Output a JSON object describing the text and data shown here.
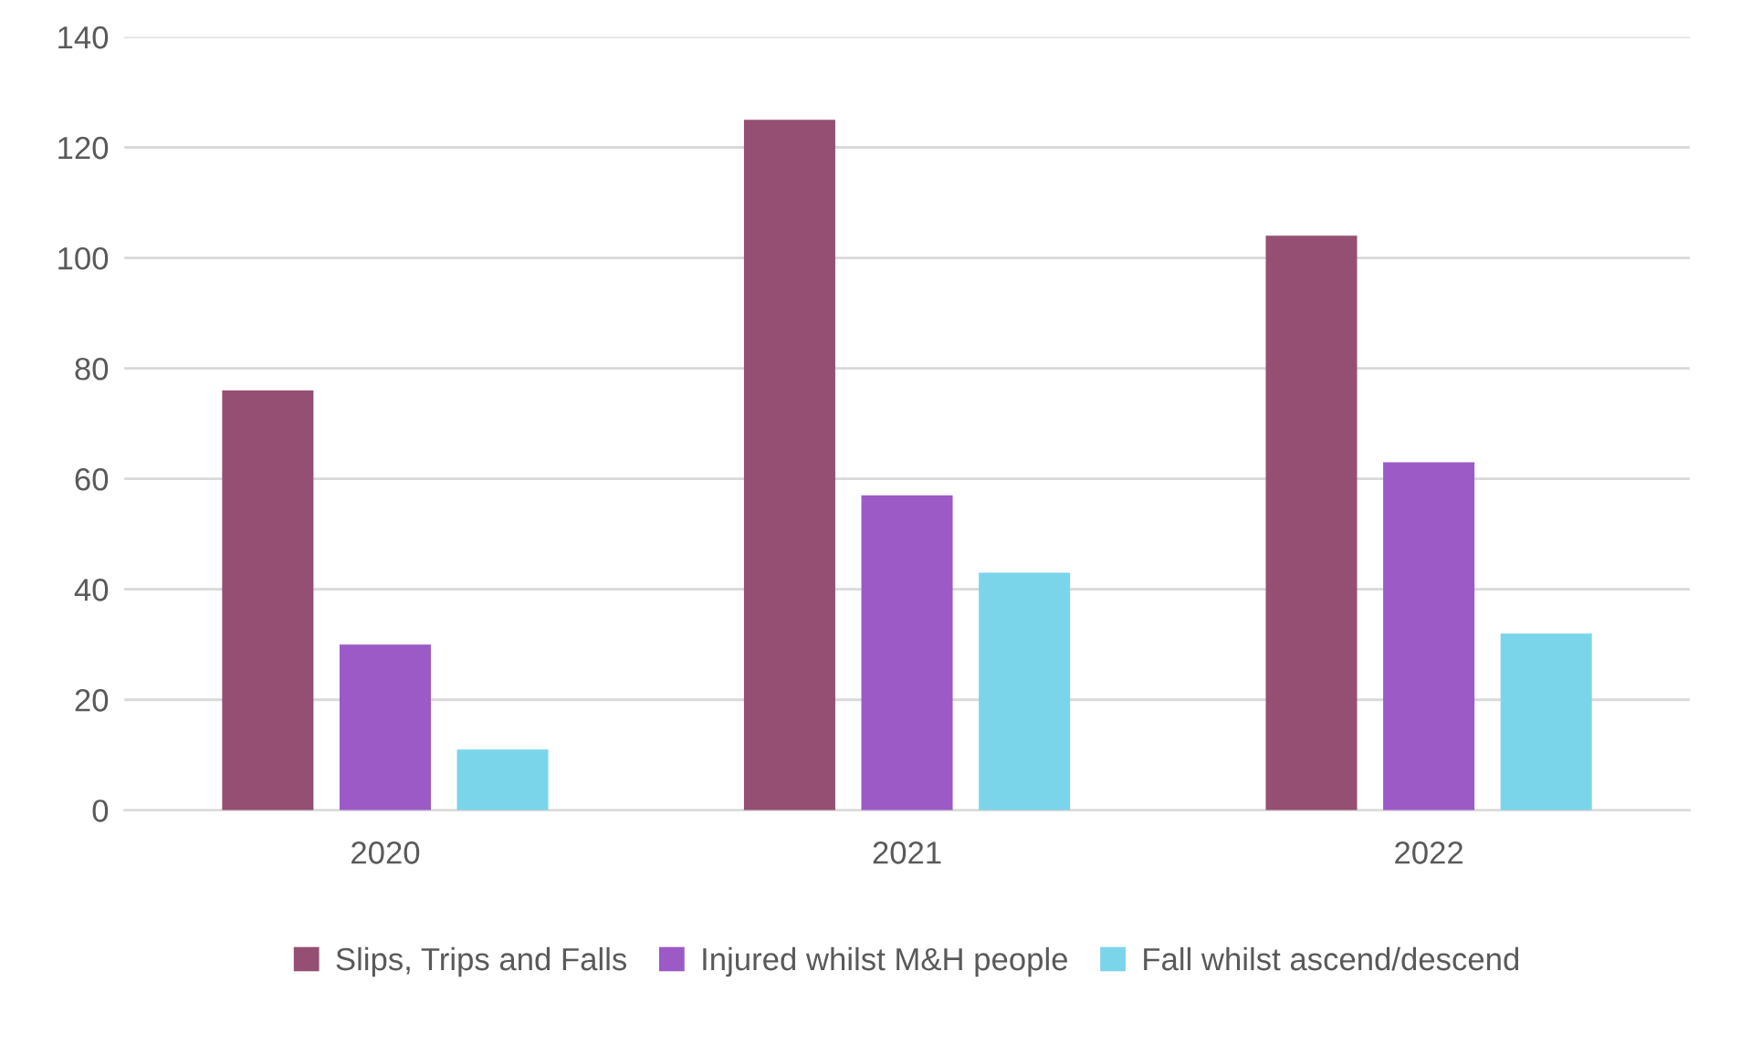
{
  "chart_data": {
    "type": "bar",
    "categories": [
      "2020",
      "2021",
      "2022"
    ],
    "series": [
      {
        "name": "Slips, Trips and Falls",
        "color": "#954f72",
        "values": [
          76,
          125,
          104
        ]
      },
      {
        "name": "Injured whilst M&H people",
        "color": "#9b5ac6",
        "values": [
          30,
          57,
          63
        ]
      },
      {
        "name": "Fall whilst ascend/descend",
        "color": "#7ad5ea",
        "values": [
          11,
          43,
          32
        ]
      }
    ],
    "ylim": [
      0,
      140
    ],
    "yticks": [
      0,
      20,
      40,
      60,
      80,
      100,
      120,
      140
    ],
    "grid": "y",
    "legend": "bottom"
  }
}
